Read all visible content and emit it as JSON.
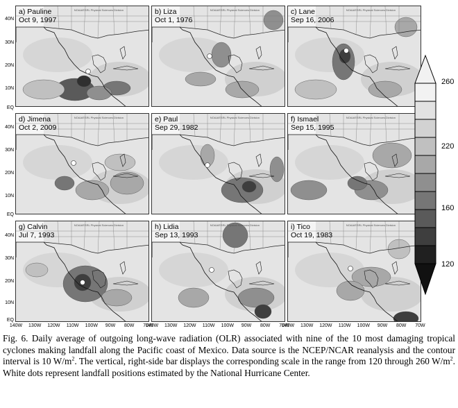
{
  "panels": [
    {
      "id": "a",
      "label": "a) Pauline",
      "date": "Oct 9, 1997"
    },
    {
      "id": "b",
      "label": "b) Liza",
      "date": "Oct 1, 1976"
    },
    {
      "id": "c",
      "label": "c) Lane",
      "date": "Sep 16, 2006"
    },
    {
      "id": "d",
      "label": "d) Jimena",
      "date": "Oct 2, 2009"
    },
    {
      "id": "e",
      "label": "e) Paul",
      "date": "Sep 29, 1982"
    },
    {
      "id": "f",
      "label": "f) Ismael",
      "date": "Sep 15, 1995"
    },
    {
      "id": "g",
      "label": "g) Calvin",
      "date": "Jul 7, 1993"
    },
    {
      "id": "h",
      "label": "h) Lidia",
      "date": "Sep 13, 1993"
    },
    {
      "id": "i",
      "label": "i) Tico",
      "date": "Oct 19, 1983"
    }
  ],
  "credit_text": "NOAA/ESRL Physical Sciences Division",
  "lat_labels": [
    "40N",
    "30N",
    "20N",
    "10N",
    "EQ"
  ],
  "lon_labels": [
    "140W",
    "130W",
    "120W",
    "110W",
    "100W",
    "90W",
    "80W",
    "70W"
  ],
  "colorbar": {
    "ticks": [
      "260",
      "220",
      "160",
      "120"
    ],
    "shades": [
      "#f2f2f2",
      "#e2e2e2",
      "#d2d2d2",
      "#c0c0c0",
      "#a8a8a8",
      "#8f8f8f",
      "#767676",
      "#5a5a5a",
      "#3e3e3e",
      "#202020"
    ]
  },
  "caption": {
    "part1": "Fig. 6. Daily average of outgoing long-wave radiation (OLR) associated with nine of the 10 most damaging tropical cyclones making landfall along the Pacific coast of Mexico. Data source is the NCEP/NCAR reanalysis and the contour interval is 10 W/m",
    "sup1": "2",
    "part2": ". The vertical, right-side bar displays the corresponding scale in the range from 120 through 260 W/m",
    "sup2": "2",
    "part3": ". White dots represent landfall positions estimated by the National Hurricane Center."
  }
}
